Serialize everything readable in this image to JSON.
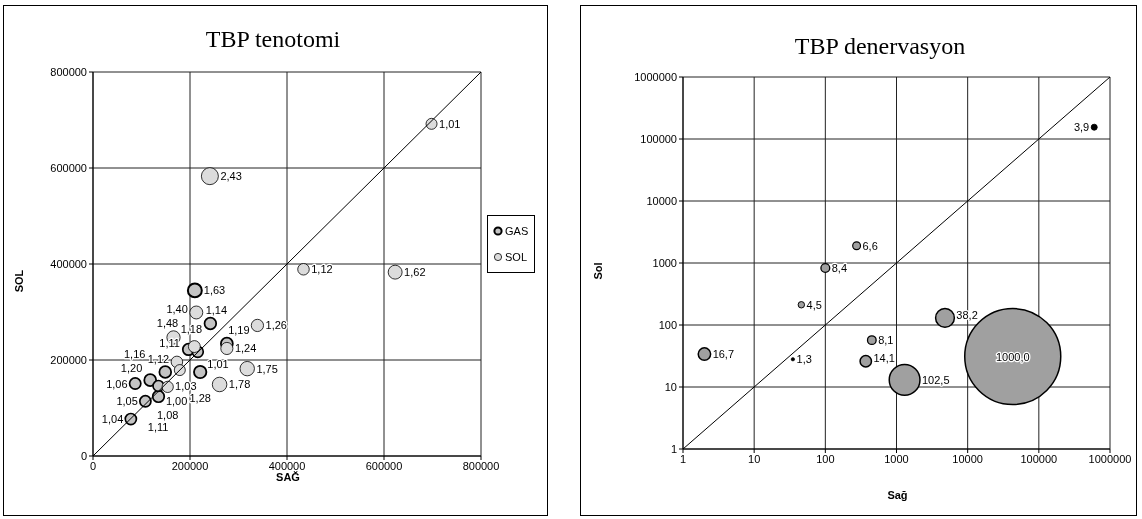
{
  "chart_data": [
    {
      "type": "bubble",
      "title": "TBP tenotomi",
      "xlabel": "SAĞ",
      "ylabel": "SOL",
      "xlim": [
        0,
        800000
      ],
      "ylim": [
        0,
        800000
      ],
      "xticks": [
        0,
        200000,
        400000,
        600000,
        800000
      ],
      "yticks": [
        0,
        200000,
        400000,
        600000,
        800000
      ],
      "grid": true,
      "legend": "right",
      "series": [
        {
          "name": "GAS",
          "color": "#c4c4c4",
          "x": [
            210000,
            242000,
            276000,
            197000,
            216000,
            221000,
            78000,
            108000,
            135000,
            87000,
            118000,
            135000,
            149000
          ],
          "values": [
            345000,
            276000,
            234000,
            222000,
            217000,
            175000,
            77000,
            114000,
            124000,
            151000,
            158000,
            146000,
            175000
          ],
          "sizes": [
            0.67,
            0.47,
            0.49,
            0.46,
            0.42,
            0.53,
            0.43,
            0.43,
            0.46,
            0.44,
            0.49,
            0.41,
            0.48
          ]
        },
        {
          "name": "SOL",
          "color": "#dcdcdc",
          "x": [
            698000,
            241000,
            623000,
            434000,
            213000,
            339000,
            166000,
            318000,
            261000,
            209000,
            173000,
            276000,
            154000,
            179000
          ],
          "values": [
            692000,
            583000,
            383000,
            389000,
            299000,
            272000,
            247000,
            182000,
            149000,
            228000,
            196000,
            224000,
            144000,
            179000
          ],
          "sizes": [
            0.42,
            1,
            0.67,
            0.46,
            0.58,
            0.52,
            0.61,
            0.72,
            0.73,
            0.49,
            0.46,
            0.51,
            0.44,
            0.42
          ]
        },
        {
          "type": "line",
          "color": "#000000",
          "x": [
            0,
            800000
          ],
          "values": [
            0,
            800000
          ]
        }
      ],
      "annotations": [
        {
          "text": "1,63",
          "x": 210000,
          "y": 345000
        },
        {
          "text": "1,14",
          "x": 242000,
          "y": 276000
        },
        {
          "text": "1,19",
          "x": 276000,
          "y": 234000
        },
        {
          "text": "1,11",
          "x": 197000,
          "y": 222000
        },
        {
          "text": "1,01",
          "x": 216000,
          "y": 217000
        },
        {
          "text": "1,28",
          "x": 221000,
          "y": 175000
        },
        {
          "text": "1,04",
          "x": 78000,
          "y": 77000
        },
        {
          "text": "1,05",
          "x": 108000,
          "y": 114000
        },
        {
          "text": "1,11",
          "x": 135000,
          "y": 124000
        },
        {
          "text": "1,06",
          "x": 87000,
          "y": 151000
        },
        {
          "text": "1,20",
          "x": 118000,
          "y": 158000
        },
        {
          "text": "1,00",
          "x": 135000,
          "y": 146000
        },
        {
          "text": "1,16",
          "x": 149000,
          "y": 175000
        },
        {
          "text": "1,01",
          "x": 698000,
          "y": 692000
        },
        {
          "text": "2,43",
          "x": 241000,
          "y": 583000
        },
        {
          "text": "1,62",
          "x": 623000,
          "y": 383000
        },
        {
          "text": "1,12",
          "x": 434000,
          "y": 389000
        },
        {
          "text": "1,40",
          "x": 213000,
          "y": 299000
        },
        {
          "text": "1,26",
          "x": 339000,
          "y": 272000
        },
        {
          "text": "1,48",
          "x": 166000,
          "y": 247000
        },
        {
          "text": "1,75",
          "x": 318000,
          "y": 182000
        },
        {
          "text": "1,78",
          "x": 261000,
          "y": 149000
        },
        {
          "text": "1,18",
          "x": 209000,
          "y": 228000
        },
        {
          "text": "1,12",
          "x": 173000,
          "y": 196000
        },
        {
          "text": "1,24",
          "x": 276000,
          "y": 224000
        },
        {
          "text": "1,08",
          "x": 154000,
          "y": 144000
        },
        {
          "text": "1,03",
          "x": 179000,
          "y": 179000
        }
      ]
    },
    {
      "type": "bubble",
      "title": "TBP denervasyon",
      "xlabel": "Sağ",
      "ylabel": "Sol",
      "log": "xy",
      "xlim": [
        1,
        1000000
      ],
      "ylim": [
        1,
        1000000
      ],
      "xticks": [
        1,
        10,
        100,
        1000,
        10000,
        100000,
        1000000
      ],
      "yticks": [
        1,
        10,
        100,
        1000,
        10000,
        100000,
        1000000
      ],
      "grid": true,
      "series": [
        {
          "colors": [
            "#000000",
            "#a0a0a0",
            "#a0a0a0",
            "#a0a0a0",
            "#a0a0a0",
            "#a0a0a0",
            "#000000",
            "#a0a0a0",
            "#a0a0a0",
            "#a0a0a0",
            "#a0a0a0"
          ],
          "x": [
            600000,
            275,
            100,
            46,
            4800,
            2,
            35,
            450,
            370,
            1300,
            43000
          ],
          "values": [
            155000,
            1900,
            830,
            212,
            130,
            34,
            28,
            57,
            26,
            13,
            31
          ],
          "sizes": [
            0.0039,
            0.0066,
            0.0084,
            0.0045,
            0.0382,
            0.0167,
            0.0013,
            0.0081,
            0.0141,
            0.1025,
            1
          ]
        },
        {
          "type": "line",
          "color": "#000000",
          "x": [
            1,
            1000000
          ],
          "values": [
            1,
            1000000
          ]
        }
      ],
      "annotations": [
        {
          "text": "3,9",
          "x": 600000,
          "y": 155000
        },
        {
          "text": "6,6",
          "x": 275,
          "y": 1900
        },
        {
          "text": "8,4",
          "x": 100,
          "y": 830
        },
        {
          "text": "4,5",
          "x": 46,
          "y": 212
        },
        {
          "text": "38,2",
          "x": 4800,
          "y": 130
        },
        {
          "text": "16,7",
          "x": 2,
          "y": 34
        },
        {
          "text": "1,3",
          "x": 35,
          "y": 28
        },
        {
          "text": "8,1",
          "x": 450,
          "y": 57
        },
        {
          "text": "14,1",
          "x": 370,
          "y": 26
        },
        {
          "text": "102,5",
          "x": 1300,
          "y": 13
        },
        {
          "text": "1000,0",
          "x": 43000,
          "y": 31
        }
      ]
    }
  ]
}
